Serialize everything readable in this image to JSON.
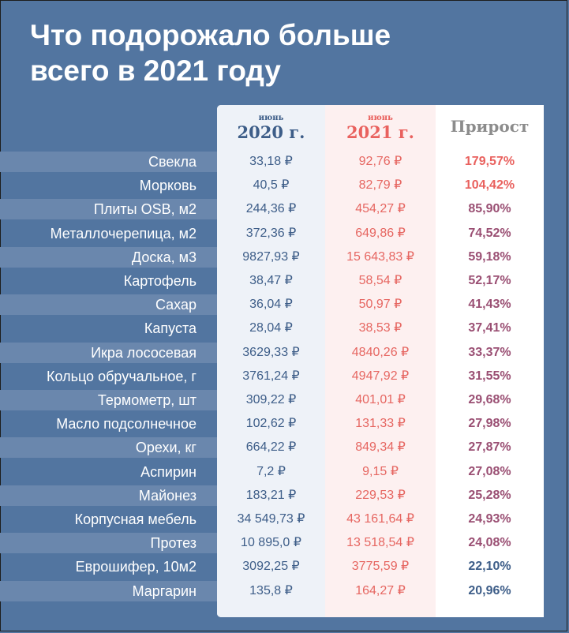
{
  "title": [
    "Что подорожало больше",
    "всего в 2021 году"
  ],
  "columns": {
    "c2020": {
      "small": "июнь",
      "big": "2020 г."
    },
    "c2021": {
      "small": "июнь",
      "big": "2021 г."
    },
    "growth": "Прирост"
  },
  "colors": {
    "background": "#5275a0",
    "col2020": "#3d5d88",
    "col2021": "#e66661",
    "growth_high": "#e9615e",
    "growth_mid": "#9a4f73"
  },
  "chart_data": {
    "type": "table",
    "columns": [
      "",
      "июнь 2020 г.",
      "июнь 2021 г.",
      "Прирост"
    ],
    "rows": [
      {
        "item": "Свекла",
        "v2020": "33,18 ₽",
        "v2021": "92,76 ₽",
        "growth": "179,57%"
      },
      {
        "item": "Морковь",
        "v2020": "40,5 ₽",
        "v2021": "82,79 ₽",
        "growth": "104,42%"
      },
      {
        "item": "Плиты OSB, м2",
        "v2020": "244,36 ₽",
        "v2021": "454,27 ₽",
        "growth": "85,90%"
      },
      {
        "item": "Металлочерепица, м2",
        "v2020": "372,36 ₽",
        "v2021": "649,86 ₽",
        "growth": "74,52%"
      },
      {
        "item": "Доска, м3",
        "v2020": "9827,93 ₽",
        "v2021": "15 643,83 ₽",
        "growth": "59,18%"
      },
      {
        "item": "Картофель",
        "v2020": "38,47 ₽",
        "v2021": "58,54 ₽",
        "growth": "52,17%"
      },
      {
        "item": "Сахар",
        "v2020": "36,04 ₽",
        "v2021": "50,97 ₽",
        "growth": "41,43%"
      },
      {
        "item": "Капуста",
        "v2020": "28,04 ₽",
        "v2021": "38,53 ₽",
        "growth": "37,41%"
      },
      {
        "item": "Икра лососевая",
        "v2020": "3629,33 ₽",
        "v2021": "4840,26 ₽",
        "growth": "33,37%"
      },
      {
        "item": "Кольцо обручальное, г",
        "v2020": "3761,24 ₽",
        "v2021": "4947,92 ₽",
        "growth": "31,55%"
      },
      {
        "item": "Термометр, шт",
        "v2020": "309,22 ₽",
        "v2021": "401,01 ₽",
        "growth": "29,68%"
      },
      {
        "item": "Масло подсолнечное",
        "v2020": "102,62 ₽",
        "v2021": "131,33 ₽",
        "growth": "27,98%"
      },
      {
        "item": "Орехи, кг",
        "v2020": "664,22 ₽",
        "v2021": "849,34 ₽",
        "growth": "27,87%"
      },
      {
        "item": "Аспирин",
        "v2020": "7,2 ₽",
        "v2021": "9,15 ₽",
        "growth": "27,08%"
      },
      {
        "item": "Майонез",
        "v2020": "183,21 ₽",
        "v2021": "229,53 ₽",
        "growth": "25,28%"
      },
      {
        "item": "Корпусная мебель",
        "v2020": "34 549,73 ₽",
        "v2021": "43 161,64 ₽",
        "growth": "24,93%"
      },
      {
        "item": "Протез",
        "v2020": "10 895,0 ₽",
        "v2021": "13 518,54 ₽",
        "growth": "24,08%"
      },
      {
        "item": "Еврошифер, 10м2",
        "v2020": "3092,25 ₽",
        "v2021": "3775,59 ₽",
        "growth": "22,10%"
      },
      {
        "item": "Маргарин",
        "v2020": "135,8 ₽",
        "v2021": "164,27 ₽",
        "growth": "20,96%"
      }
    ]
  }
}
